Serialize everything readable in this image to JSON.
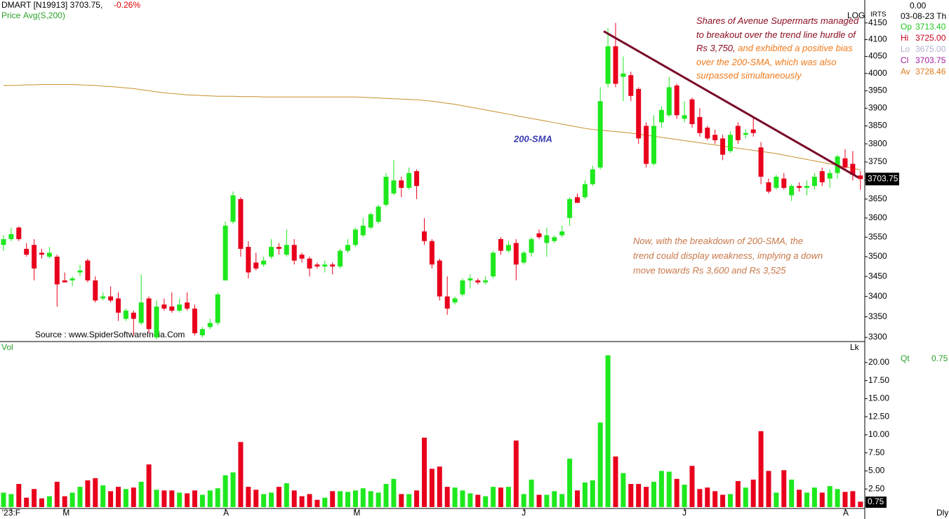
{
  "chart_data": {
    "type": "candlestick",
    "header": {
      "symbol": "DMART [N19913] 3703.75,",
      "change": "-0.26%",
      "price": "Price",
      "avg": "Avg(S,200)"
    },
    "info": {
      "top": "0.00",
      "date": "03-08-23 Th",
      "rows": [
        {
          "label": "Op",
          "value": "3713.40"
        },
        {
          "label": "Hi",
          "value": "3725.00"
        },
        {
          "label": "Lo",
          "value": "3675.00"
        },
        {
          "label": "Cl",
          "value": "3703.75"
        },
        {
          "label": "Av",
          "value": "3728.46"
        }
      ]
    },
    "log_label": "LOG",
    "corner_label": "IRTS",
    "volume_title": "Vol",
    "volume_unit": "Lk",
    "qty_label": "Qt",
    "period": "Dly",
    "source": "Source : www.SpiderSoftwareIndia.Com",
    "sma_label": "200-SMA",
    "annotation1": {
      "part1": "Shares of Avenue Supermarts managed to breakout over the trend line hurdle of Rs 3,750,",
      "part2": " and exhibited a positive bias over the 200-SMA, which was also surpassed simultaneously"
    },
    "annotation2": "Now, with the breakdown of 200-SMA, the trend could display weakness, implying a down move towards Rs 3,600 and Rs 3,525",
    "log_scale": true,
    "up_color": "#1ee81e",
    "down_color": "#e8001c",
    "sma_color": "#c8902c",
    "trend_color": "#7a0a28",
    "date_labels": [
      {
        "index": 1,
        "label": "'23:F"
      },
      {
        "index": 8,
        "label": "M"
      },
      {
        "index": 29,
        "label": "A"
      },
      {
        "index": 46,
        "label": "M"
      },
      {
        "index": 68,
        "label": "J"
      },
      {
        "index": 89,
        "label": "J"
      },
      {
        "index": 110,
        "label": "A"
      }
    ],
    "ylim": [
      3290,
      4220
    ],
    "yticks": [
      3300,
      3350,
      3400,
      3450,
      3500,
      3550,
      3600,
      3650,
      3700,
      3750,
      3800,
      3850,
      3900,
      3950,
      4000,
      4050,
      4100,
      4150
    ],
    "vlim": [
      0,
      22.9
    ],
    "vticks": [
      {
        "value": 2.5,
        "label": "2.50"
      },
      {
        "value": 5,
        "label": "5.00"
      },
      {
        "value": 7.5,
        "label": "7.50"
      },
      {
        "value": 10,
        "label": "10.00"
      },
      {
        "value": 12.5,
        "label": "12.50"
      },
      {
        "value": 15,
        "label": "15.00"
      },
      {
        "value": 17.5,
        "label": "17.50"
      },
      {
        "value": 20,
        "label": "20.00"
      }
    ],
    "trendline": {
      "from": [
        79,
        4125
      ],
      "to": [
        112,
        3708
      ]
    },
    "open": [
      3530,
      3545,
      3575,
      3520,
      3530,
      3510,
      3500,
      3500,
      3440,
      3440,
      3460,
      3490,
      3440,
      3395,
      3400,
      3395,
      3345,
      3360,
      3335,
      3395,
      3300,
      3380,
      3375,
      3365,
      3385,
      3370,
      3305,
      3325,
      3335,
      3440,
      3590,
      3650,
      3525,
      3485,
      3480,
      3500,
      3525,
      3505,
      3530,
      3505,
      3495,
      3480,
      3475,
      3480,
      3475,
      3515,
      3530,
      3555,
      3575,
      3590,
      3635,
      3665,
      3700,
      3680,
      3725,
      3565,
      3540,
      3490,
      3400,
      3385,
      3405,
      3440,
      3440,
      3435,
      3450,
      3545,
      3515,
      3535,
      3485,
      3510,
      3560,
      3535,
      3540,
      3555,
      3600,
      3655,
      3655,
      3690,
      3735,
      3970,
      4080,
      3990,
      3995,
      3955,
      3850,
      3745,
      3860,
      3880,
      3965,
      3870,
      3925,
      3875,
      3845,
      3825,
      3815,
      3780,
      3850,
      3825,
      3840,
      3790,
      3695,
      3680,
      3705,
      3660,
      3685,
      3680,
      3685,
      3725,
      3705,
      3720,
      3760,
      3745,
      3713.4
    ],
    "high": [
      3555,
      3575,
      3578,
      3535,
      3545,
      3520,
      3525,
      3505,
      3460,
      3450,
      3480,
      3495,
      3450,
      3410,
      3425,
      3410,
      3370,
      3365,
      3455,
      3400,
      3390,
      3395,
      3410,
      3395,
      3410,
      3380,
      3325,
      3345,
      3410,
      3590,
      3670,
      3655,
      3540,
      3510,
      3500,
      3545,
      3535,
      3570,
      3545,
      3510,
      3500,
      3485,
      3490,
      3485,
      3520,
      3545,
      3575,
      3600,
      3615,
      3635,
      3720,
      3755,
      3710,
      3735,
      3730,
      3600,
      3545,
      3495,
      3450,
      3400,
      3445,
      3455,
      3445,
      3450,
      3515,
      3550,
      3540,
      3545,
      3515,
      3550,
      3570,
      3575,
      3555,
      3580,
      3655,
      3665,
      3700,
      3740,
      3960,
      4135,
      4150,
      4050,
      4005,
      3960,
      3860,
      3880,
      3905,
      3990,
      3970,
      3920,
      3930,
      3900,
      3850,
      3840,
      3825,
      3835,
      3860,
      3840,
      3875,
      3805,
      3705,
      3715,
      3720,
      3690,
      3695,
      3700,
      3720,
      3735,
      3730,
      3770,
      3785,
      3780,
      3725
    ],
    "low": [
      3515,
      3540,
      3540,
      3500,
      3440,
      3495,
      3495,
      3375,
      3435,
      3425,
      3450,
      3435,
      3385,
      3390,
      3385,
      3340,
      3340,
      3305,
      3330,
      3310,
      3295,
      3365,
      3360,
      3360,
      3365,
      3305,
      3300,
      3320,
      3330,
      3440,
      3585,
      3500,
      3445,
      3465,
      3475,
      3495,
      3505,
      3500,
      3480,
      3485,
      3450,
      3470,
      3460,
      3455,
      3470,
      3510,
      3525,
      3550,
      3570,
      3585,
      3630,
      3660,
      3655,
      3675,
      3650,
      3530,
      3470,
      3390,
      3355,
      3380,
      3400,
      3420,
      3430,
      3430,
      3445,
      3505,
      3510,
      3440,
      3480,
      3500,
      3545,
      3500,
      3535,
      3550,
      3580,
      3640,
      3650,
      3685,
      3730,
      3960,
      3960,
      3920,
      3920,
      3800,
      3735,
      3740,
      3845,
      3875,
      3870,
      3860,
      3845,
      3820,
      3810,
      3800,
      3755,
      3775,
      3800,
      3815,
      3820,
      3690,
      3665,
      3675,
      3675,
      3645,
      3670,
      3660,
      3675,
      3685,
      3680,
      3705,
      3730,
      3700,
      3675
    ],
    "close": [
      3545,
      3558,
      3545,
      3505,
      3470,
      3505,
      3510,
      3430,
      3435,
      3445,
      3465,
      3440,
      3390,
      3400,
      3390,
      3360,
      3365,
      3345,
      3385,
      3320,
      3375,
      3370,
      3365,
      3380,
      3370,
      3310,
      3320,
      3335,
      3405,
      3580,
      3660,
      3520,
      3460,
      3470,
      3490,
      3525,
      3520,
      3530,
      3490,
      3495,
      3470,
      3475,
      3480,
      3475,
      3515,
      3530,
      3570,
      3580,
      3610,
      3630,
      3710,
      3700,
      3680,
      3720,
      3685,
      3540,
      3480,
      3400,
      3370,
      3395,
      3440,
      3445,
      3435,
      3440,
      3510,
      3515,
      3530,
      3480,
      3510,
      3545,
      3550,
      3555,
      3550,
      3565,
      3650,
      3640,
      3690,
      3730,
      3920,
      4080,
      3970,
      4000,
      3935,
      3815,
      3745,
      3850,
      3895,
      3960,
      3880,
      3880,
      3855,
      3830,
      3815,
      3810,
      3770,
      3825,
      3810,
      3830,
      3830,
      3710,
      3670,
      3710,
      3680,
      3685,
      3680,
      3685,
      3710,
      3695,
      3720,
      3765,
      3735,
      3715,
      3703.75
    ],
    "volume": [
      2.0,
      1.8,
      3.2,
      1.3,
      2.5,
      1.2,
      1.5,
      3.5,
      1.5,
      2.0,
      2.8,
      3.7,
      4.0,
      3.0,
      2.2,
      2.8,
      2.5,
      2.7,
      3.5,
      5.9,
      2.4,
      2.3,
      2.3,
      2.0,
      1.9,
      2.3,
      1.7,
      2.3,
      2.6,
      4.4,
      4.8,
      9.0,
      2.8,
      2.4,
      1.8,
      2.0,
      2.8,
      3.3,
      2.3,
      1.5,
      1.8,
      1.0,
      1.3,
      2.2,
      2.2,
      2.1,
      2.3,
      2.6,
      2.2,
      2.0,
      3.2,
      3.9,
      1.8,
      1.8,
      2.3,
      9.6,
      5.3,
      5.6,
      2.8,
      2.7,
      2.3,
      1.9,
      1.7,
      1.5,
      2.8,
      2.7,
      2.8,
      9.2,
      1.8,
      3.8,
      1.7,
      1.7,
      2.2,
      1.8,
      6.7,
      2.3,
      3.4,
      3.7,
      11.7,
      21.0,
      7.0,
      4.7,
      3.2,
      3.2,
      2.8,
      3.5,
      5.0,
      4.9,
      3.9,
      3.1,
      5.7,
      2.5,
      2.7,
      2.2,
      1.7,
      1.8,
      3.6,
      2.7,
      3.8,
      10.5,
      5.0,
      2.0,
      5.1,
      3.8,
      2.4,
      2.0,
      2.7,
      2.0,
      2.9,
      2.5,
      2.1,
      2.2,
      0.75
    ],
    "sma": [
      3965,
      3965,
      3966,
      3967,
      3967,
      3968,
      3968,
      3968,
      3968,
      3968,
      3967,
      3966,
      3965,
      3963,
      3962,
      3960,
      3958,
      3956,
      3953,
      3950,
      3947,
      3944,
      3942,
      3940,
      3938,
      3937,
      3936,
      3935,
      3934,
      3934,
      3934,
      3933,
      3933,
      3933,
      3932,
      3932,
      3932,
      3932,
      3932,
      3932,
      3932,
      3932,
      3932,
      3932,
      3932,
      3932,
      3932,
      3931,
      3930,
      3929,
      3928,
      3927,
      3926,
      3925,
      3924,
      3922,
      3920,
      3917,
      3914,
      3911,
      3907,
      3903,
      3899,
      3895,
      3891,
      3887,
      3883,
      3879,
      3875,
      3871,
      3867,
      3863,
      3859,
      3855,
      3851,
      3847,
      3843,
      3840,
      3838,
      3836,
      3834,
      3832,
      3830,
      3827,
      3824,
      3821,
      3818,
      3815,
      3812,
      3809,
      3806,
      3803,
      3800,
      3797,
      3794,
      3791,
      3788,
      3785,
      3782,
      3779,
      3776,
      3773,
      3769,
      3765,
      3761,
      3757,
      3753,
      3749,
      3745,
      3741,
      3737,
      3733,
      3728.46
    ]
  }
}
